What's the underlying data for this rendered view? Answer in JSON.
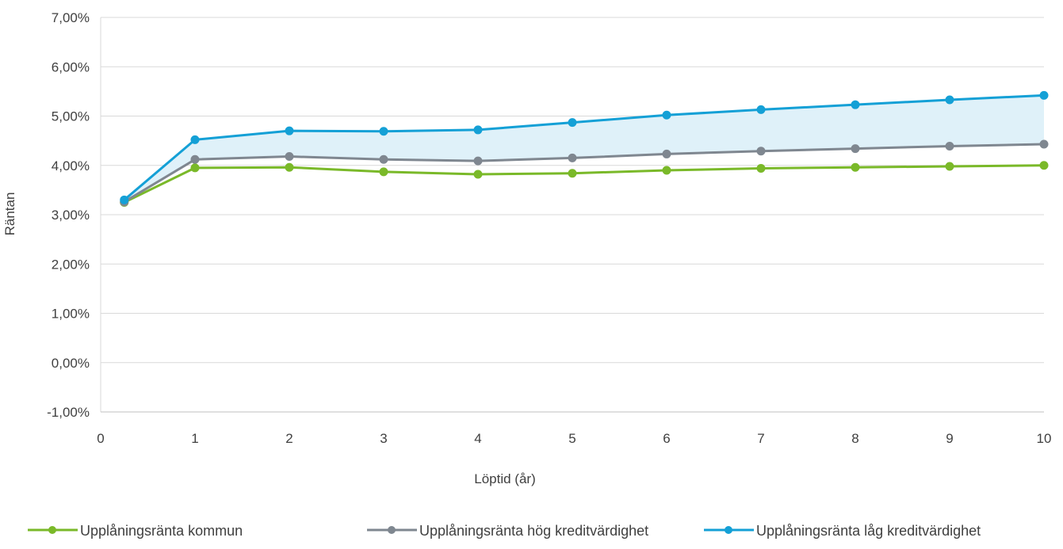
{
  "chart_data": {
    "type": "line",
    "xlabel": "Löptid (år)",
    "ylabel": "Räntan",
    "xlim": [
      0,
      10
    ],
    "ylim": [
      -1,
      7
    ],
    "x_ticks": [
      "0",
      "1",
      "2",
      "3",
      "4",
      "5",
      "6",
      "7",
      "8",
      "9",
      "10"
    ],
    "y_ticks": [
      "-1,00%",
      "0,00%",
      "1,00%",
      "2,00%",
      "3,00%",
      "4,00%",
      "5,00%",
      "6,00%",
      "7,00%"
    ],
    "grid": true,
    "legend_position": "bottom",
    "shaded_band": {
      "between": [
        "Upplåningsränta hög kreditvärdighet",
        "Upplåningsränta låg kreditvärdighet"
      ],
      "color": "#dff1f9"
    },
    "x": [
      0.25,
      1,
      2,
      3,
      4,
      5,
      6,
      7,
      8,
      9,
      10
    ],
    "series": [
      {
        "name": "Upplåningsränta kommun",
        "color": "#7ab929",
        "values": [
          3.25,
          3.95,
          3.96,
          3.87,
          3.82,
          3.84,
          3.9,
          3.94,
          3.96,
          3.98,
          4.0
        ]
      },
      {
        "name": "Upplåningsränta hög kreditvärdighet",
        "color": "#7f8790",
        "values": [
          3.26,
          4.12,
          4.18,
          4.12,
          4.09,
          4.15,
          4.23,
          4.29,
          4.34,
          4.39,
          4.43
        ]
      },
      {
        "name": "Upplåningsränta låg kreditvärdighet",
        "color": "#14a0d6",
        "values": [
          3.3,
          4.52,
          4.7,
          4.69,
          4.72,
          4.87,
          5.02,
          5.13,
          5.23,
          5.33,
          5.42
        ]
      }
    ]
  }
}
